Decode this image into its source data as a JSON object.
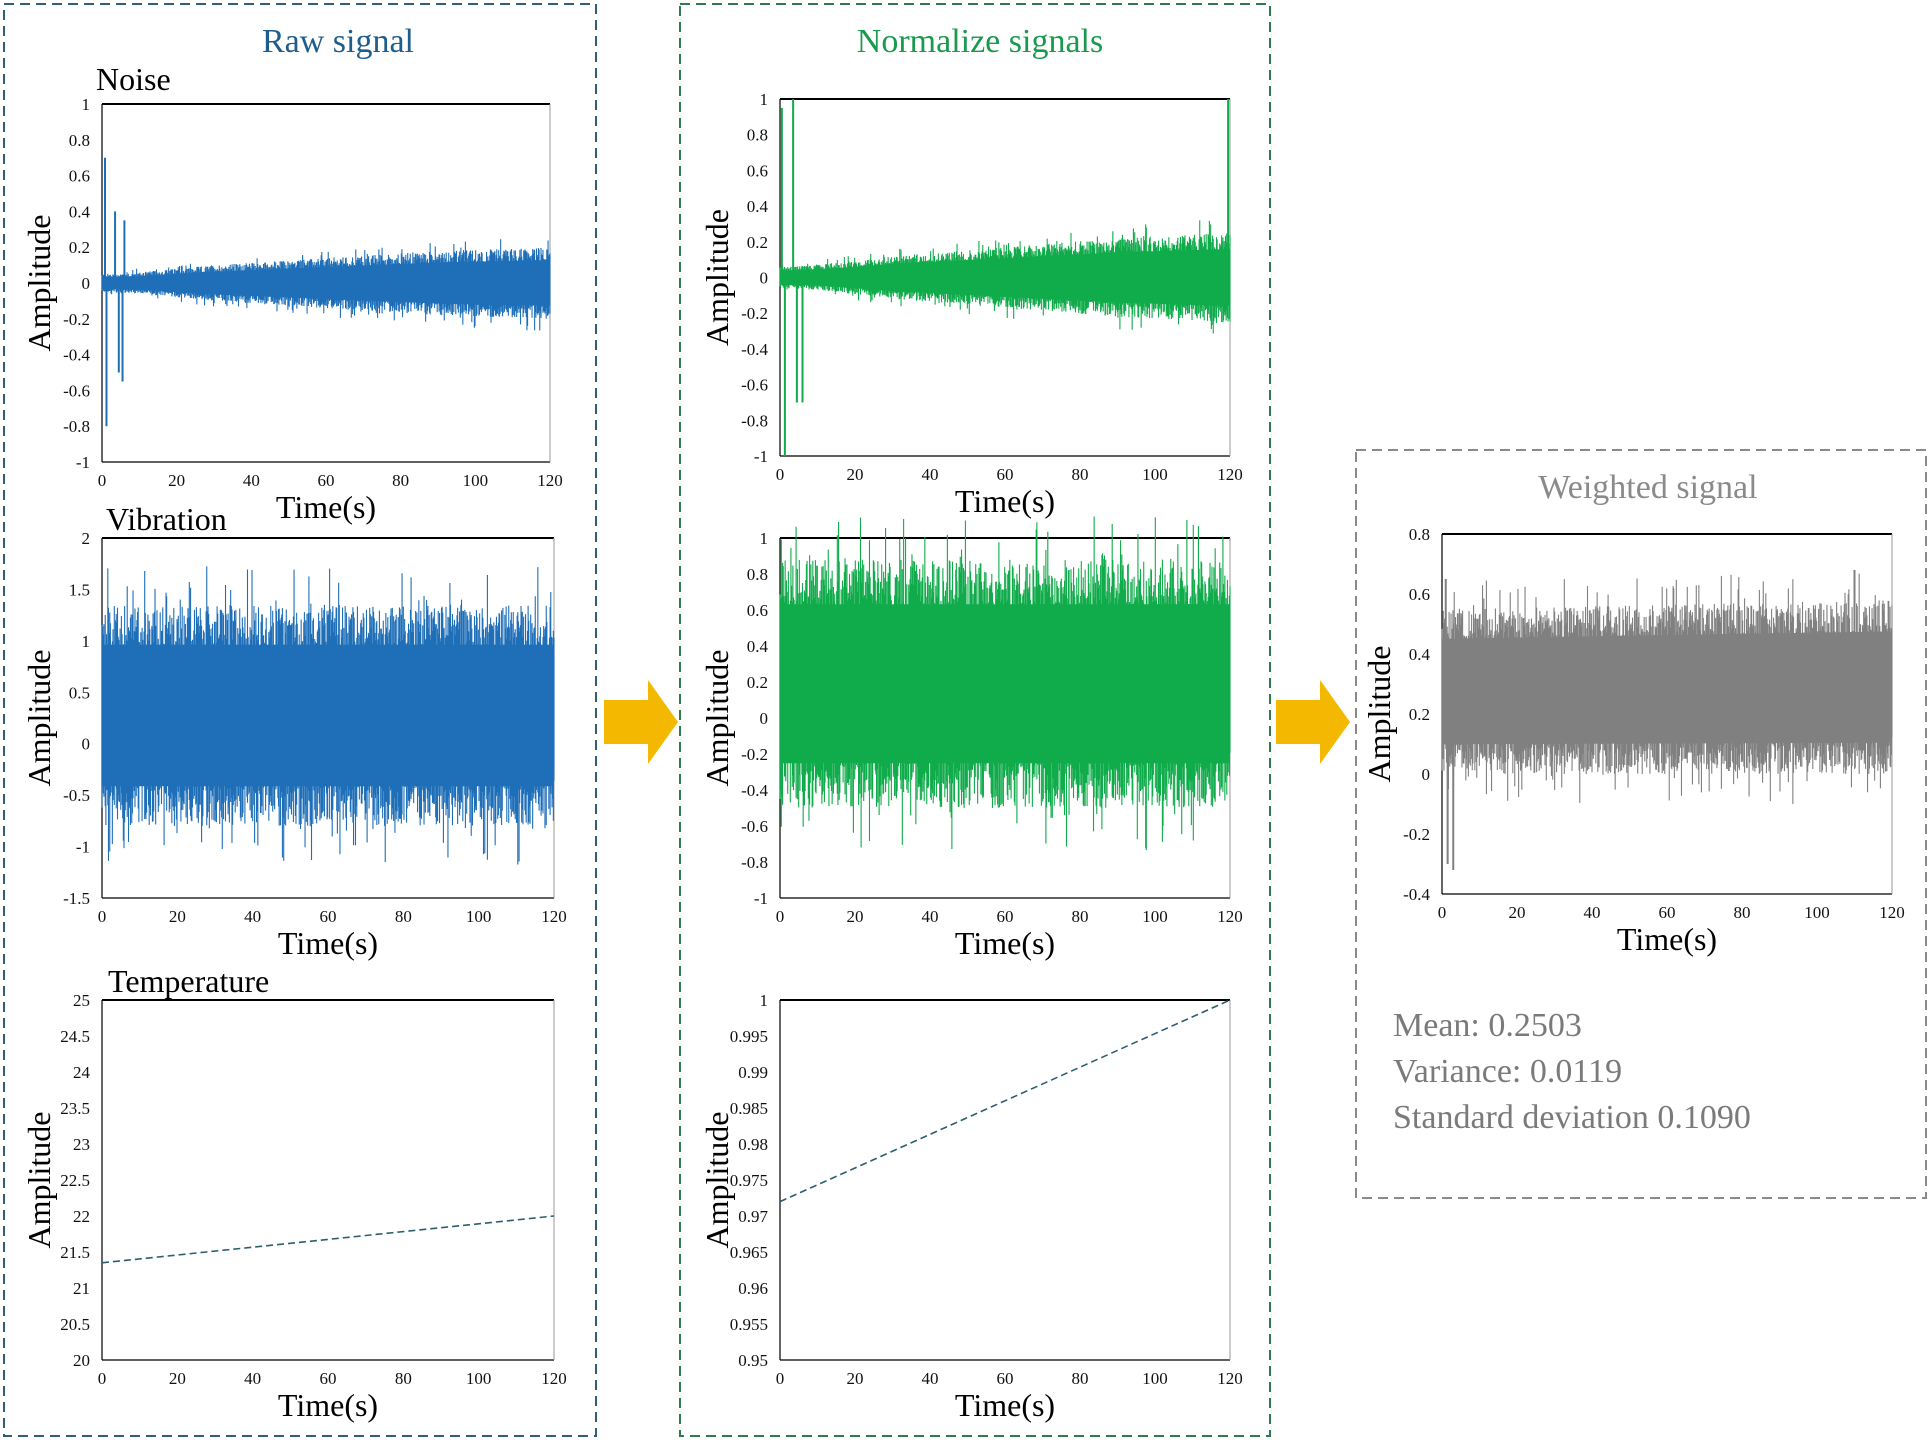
{
  "panels": {
    "raw": {
      "title": "Raw signal"
    },
    "normalize": {
      "title": "Normalize signals"
    },
    "weighted": {
      "title": "Weighted signal"
    }
  },
  "colors": {
    "raw": "#1f6fb8",
    "normalize": "#10ab4a",
    "weighted": "#808080",
    "raw_title": "#1f5d8c",
    "normalize_title": "#199a4c",
    "weighted_title": "#8a8a8a",
    "panel_border_blue": "#2f5f73",
    "panel_border_green": "#2f7a4e",
    "panel_border_gray": "#8a8a8a",
    "arrow": "#f5b800"
  },
  "stats": {
    "mean": "Mean: 0.2503",
    "variance": "Variance: 0.0119",
    "std": "Standard deviation 0.1090"
  },
  "chart_data": [
    {
      "id": "raw-noise",
      "type": "line",
      "panel": "raw",
      "title": "Noise",
      "xlabel": "Time(s)",
      "ylabel": "Amplitude",
      "xlim": [
        0,
        120
      ],
      "ylim": [
        -1,
        1
      ],
      "xticks": [
        "0",
        "20",
        "40",
        "60",
        "80",
        "100",
        "120"
      ],
      "yticks": [
        "1",
        "0.8",
        "0.6",
        "0.4",
        "0.2",
        "0",
        "-0.2",
        "-0.4",
        "-0.6",
        "-0.8",
        "-1"
      ],
      "envelope": {
        "x": [
          0,
          10,
          30,
          60,
          90,
          120
        ],
        "upper": [
          0.05,
          0.06,
          0.1,
          0.14,
          0.18,
          0.2
        ],
        "lower": [
          -0.05,
          -0.06,
          -0.1,
          -0.14,
          -0.18,
          -0.2
        ]
      },
      "spikes": [
        {
          "x": 0.8,
          "y": 0.7
        },
        {
          "x": 1.2,
          "y": -0.8
        },
        {
          "x": 3.5,
          "y": 0.4
        },
        {
          "x": 4.5,
          "y": -0.5
        },
        {
          "x": 5.5,
          "y": -0.55
        },
        {
          "x": 6,
          "y": 0.35
        }
      ]
    },
    {
      "id": "raw-vibration",
      "type": "line",
      "panel": "raw",
      "title": "Vibration",
      "xlabel": "Time(s)",
      "ylabel": "Amplitude",
      "xlim": [
        0,
        120
      ],
      "ylim": [
        -1.5,
        2
      ],
      "xticks": [
        "0",
        "20",
        "40",
        "60",
        "80",
        "100",
        "120"
      ],
      "yticks": [
        "2",
        "1.5",
        "1",
        "0.5",
        "0",
        "-0.5",
        "-1",
        "-1.5"
      ],
      "envelope": {
        "x": [
          0,
          120
        ],
        "upper": [
          1.35,
          1.35
        ],
        "lower": [
          -0.8,
          -0.8
        ]
      },
      "spikes": []
    },
    {
      "id": "raw-temperature",
      "type": "line",
      "panel": "raw",
      "title": "Temperature",
      "xlabel": "Time(s)",
      "ylabel": "Amplitude",
      "xlim": [
        0,
        120
      ],
      "ylim": [
        20,
        25
      ],
      "xticks": [
        "0",
        "20",
        "40",
        "60",
        "80",
        "100",
        "120"
      ],
      "yticks": [
        "25",
        "24.5",
        "24",
        "23.5",
        "23",
        "22.5",
        "22",
        "21.5",
        "21",
        "20.5",
        "20"
      ],
      "series": [
        {
          "name": "Temperature",
          "x": [
            0,
            120
          ],
          "y": [
            21.35,
            22.0
          ]
        }
      ]
    },
    {
      "id": "norm-noise",
      "type": "line",
      "panel": "normalize",
      "xlabel": "Time(s)",
      "ylabel": "Amplitude",
      "xlim": [
        0,
        120
      ],
      "ylim": [
        -1,
        1
      ],
      "xticks": [
        "0",
        "20",
        "40",
        "60",
        "80",
        "100",
        "120"
      ],
      "yticks": [
        "1",
        "0.8",
        "0.6",
        "0.4",
        "0.2",
        "0",
        "-0.2",
        "-0.4",
        "-0.6",
        "-0.8",
        "-1"
      ],
      "envelope": {
        "x": [
          0,
          10,
          30,
          60,
          90,
          120
        ],
        "upper": [
          0.06,
          0.07,
          0.12,
          0.17,
          0.22,
          0.25
        ],
        "lower": [
          -0.06,
          -0.07,
          -0.12,
          -0.17,
          -0.22,
          -0.25
        ]
      },
      "spikes": [
        {
          "x": 0.5,
          "y": 0.95
        },
        {
          "x": 1.3,
          "y": -1.0
        },
        {
          "x": 3.5,
          "y": 1.0
        },
        {
          "x": 4.5,
          "y": -0.7
        },
        {
          "x": 6,
          "y": -0.7
        },
        {
          "x": 119.5,
          "y": 1.0
        }
      ]
    },
    {
      "id": "norm-vibration",
      "type": "line",
      "panel": "normalize",
      "xlabel": "Time(s)",
      "ylabel": "Amplitude",
      "xlim": [
        0,
        120
      ],
      "ylim": [
        -1,
        1
      ],
      "xticks": [
        "0",
        "20",
        "40",
        "60",
        "80",
        "100",
        "120"
      ],
      "yticks": [
        "1",
        "0.8",
        "0.6",
        "0.4",
        "0.2",
        "0",
        "-0.2",
        "-0.4",
        "-0.6",
        "-0.8",
        "-1"
      ],
      "envelope": {
        "x": [
          0,
          120
        ],
        "upper": [
          0.88,
          0.88
        ],
        "lower": [
          -0.5,
          -0.5
        ]
      },
      "spikes": []
    },
    {
      "id": "norm-temperature",
      "type": "line",
      "panel": "normalize",
      "xlabel": "Time(s)",
      "ylabel": "Amplitude",
      "xlim": [
        0,
        120
      ],
      "ylim": [
        0.95,
        1
      ],
      "xticks": [
        "0",
        "20",
        "40",
        "60",
        "80",
        "100",
        "120"
      ],
      "yticks": [
        "1",
        "0.995",
        "0.99",
        "0.985",
        "0.98",
        "0.975",
        "0.97",
        "0.965",
        "0.96",
        "0.955",
        "0.95"
      ],
      "series": [
        {
          "name": "Temperature",
          "x": [
            0,
            120
          ],
          "y": [
            0.972,
            1.0
          ]
        }
      ]
    },
    {
      "id": "weighted",
      "type": "line",
      "panel": "weighted",
      "xlabel": "Time(s)",
      "ylabel": "Amplitude",
      "xlim": [
        0,
        120
      ],
      "ylim": [
        -0.4,
        0.8
      ],
      "xticks": [
        "0",
        "20",
        "40",
        "60",
        "80",
        "100",
        "120"
      ],
      "yticks": [
        "0.8",
        "0.6",
        "0.4",
        "0.2",
        "0",
        "-0.2",
        "-0.4"
      ],
      "envelope": {
        "x": [
          0,
          120
        ],
        "upper": [
          0.55,
          0.58
        ],
        "lower": [
          0.0,
          0.0
        ]
      },
      "spikes": [
        {
          "x": 1,
          "y": 0.65
        },
        {
          "x": 1.5,
          "y": -0.3
        },
        {
          "x": 3,
          "y": -0.32
        },
        {
          "x": 110,
          "y": 0.68
        }
      ]
    }
  ]
}
